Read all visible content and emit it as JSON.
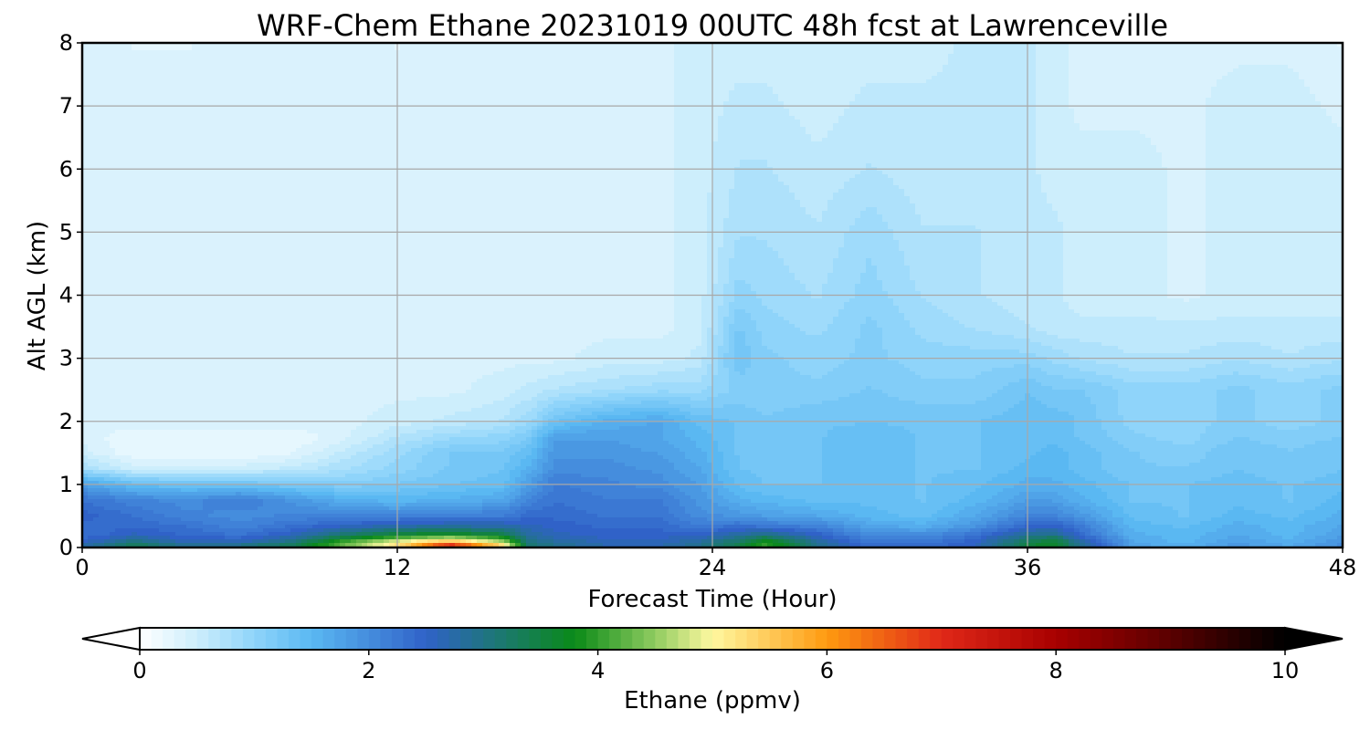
{
  "chart_data": {
    "type": "heatmap",
    "title": "WRF-Chem Ethane  20231019 00UTC 48h fcst at Lawrenceville",
    "xlabel": "Forecast Time (Hour)",
    "ylabel": "Alt AGL (km)",
    "xlim": [
      0,
      48
    ],
    "ylim": [
      0,
      8
    ],
    "x_ticks": [
      0,
      12,
      24,
      36,
      48
    ],
    "y_ticks": [
      0,
      1,
      2,
      3,
      4,
      5,
      6,
      7,
      8
    ],
    "grid": true,
    "colorbar": {
      "label": "Ethane  (ppmv)",
      "range": [
        0,
        10
      ],
      "ticks": [
        0,
        2,
        4,
        6,
        8,
        10
      ],
      "extend": "both",
      "placement": "bottom",
      "colormap": [
        {
          "value": 0.0,
          "color": "#ffffff"
        },
        {
          "value": 0.5,
          "color": "#cdeefc"
        },
        {
          "value": 1.0,
          "color": "#8fd4fa"
        },
        {
          "value": 1.5,
          "color": "#5ab8f2"
        },
        {
          "value": 2.5,
          "color": "#3062c8"
        },
        {
          "value": 3.2,
          "color": "#1a7a6a"
        },
        {
          "value": 3.8,
          "color": "#0a8a18"
        },
        {
          "value": 4.5,
          "color": "#90cc60"
        },
        {
          "value": 5.0,
          "color": "#fff8a0"
        },
        {
          "value": 6.0,
          "color": "#ff9a10"
        },
        {
          "value": 7.0,
          "color": "#e02818"
        },
        {
          "value": 8.0,
          "color": "#a80000"
        },
        {
          "value": 9.0,
          "color": "#5a0000"
        },
        {
          "value": 10.0,
          "color": "#000000"
        }
      ]
    },
    "field": {
      "x": [
        0,
        2,
        4,
        6,
        8,
        10,
        12,
        14,
        16,
        17,
        18,
        20,
        22,
        23.5,
        25,
        26,
        28,
        30,
        32,
        34,
        36,
        37,
        38,
        40,
        42,
        44,
        46,
        48
      ],
      "y": [
        0,
        0.1,
        0.2,
        0.35,
        0.5,
        0.75,
        1,
        1.25,
        1.5,
        1.75,
        2,
        2.5,
        3,
        3.5,
        4,
        5,
        6,
        7,
        8
      ],
      "values": [
        [
          2.8,
          3.5,
          3.0,
          3.2,
          3.5,
          4.5,
          5.5,
          8.0,
          5.8,
          3.2,
          3.0,
          2.7,
          2.7,
          3.0,
          3.5,
          4.2,
          3.0,
          2.4,
          2.4,
          2.6,
          3.6,
          3.8,
          3.0,
          1.8,
          1.6,
          1.9,
          1.7,
          2.0
        ],
        [
          2.5,
          3.0,
          2.6,
          2.6,
          3.0,
          4.0,
          4.8,
          5.5,
          4.5,
          3.0,
          2.8,
          2.6,
          2.6,
          2.8,
          3.2,
          3.8,
          2.8,
          2.2,
          2.2,
          2.5,
          3.3,
          3.6,
          2.8,
          1.7,
          1.5,
          1.8,
          1.6,
          1.9
        ],
        [
          2.3,
          2.6,
          2.4,
          2.3,
          2.6,
          3.2,
          3.6,
          3.8,
          3.5,
          2.8,
          2.6,
          2.5,
          2.5,
          2.5,
          2.8,
          3.0,
          2.5,
          2.0,
          2.0,
          2.3,
          2.9,
          3.0,
          2.4,
          1.6,
          1.5,
          1.7,
          1.5,
          1.8
        ],
        [
          2.4,
          2.4,
          2.3,
          2.1,
          2.3,
          2.5,
          2.7,
          2.7,
          2.7,
          2.6,
          2.5,
          2.4,
          2.4,
          2.2,
          2.3,
          2.2,
          2.1,
          1.7,
          1.6,
          1.9,
          2.4,
          2.5,
          2.2,
          1.5,
          1.4,
          1.6,
          1.5,
          1.7
        ],
        [
          2.5,
          2.3,
          2.1,
          2.0,
          2.1,
          2.1,
          2.1,
          2.2,
          2.2,
          2.4,
          2.4,
          2.3,
          2.3,
          2.0,
          1.9,
          1.8,
          1.7,
          1.5,
          1.4,
          1.7,
          2.1,
          2.1,
          1.9,
          1.4,
          1.3,
          1.5,
          1.4,
          1.6
        ],
        [
          2.3,
          2.1,
          2.0,
          2.2,
          1.9,
          1.6,
          1.5,
          1.6,
          1.7,
          2.1,
          2.3,
          2.2,
          2.2,
          1.9,
          1.6,
          1.5,
          1.4,
          1.4,
          1.3,
          1.5,
          1.8,
          1.8,
          1.6,
          1.3,
          1.3,
          1.4,
          1.3,
          1.5
        ],
        [
          1.8,
          1.4,
          1.3,
          1.3,
          1.2,
          1.1,
          1.2,
          1.3,
          1.4,
          1.8,
          2.2,
          2.1,
          2.0,
          1.8,
          1.4,
          1.3,
          1.3,
          1.4,
          1.3,
          1.4,
          1.6,
          1.6,
          1.5,
          1.3,
          1.3,
          1.4,
          1.3,
          1.4
        ],
        [
          0.8,
          0.5,
          0.5,
          0.5,
          0.6,
          0.8,
          1.0,
          1.2,
          1.3,
          1.6,
          2.0,
          2.0,
          1.9,
          1.7,
          1.3,
          1.3,
          1.3,
          1.4,
          1.3,
          1.3,
          1.5,
          1.5,
          1.4,
          1.2,
          1.2,
          1.3,
          1.2,
          1.3
        ],
        [
          0.5,
          0.2,
          0.2,
          0.2,
          0.3,
          0.6,
          0.9,
          1.2,
          1.2,
          1.4,
          1.9,
          1.9,
          1.8,
          1.6,
          1.3,
          1.3,
          1.3,
          1.4,
          1.3,
          1.3,
          1.4,
          1.5,
          1.4,
          1.2,
          1.1,
          1.3,
          1.2,
          1.3
        ],
        [
          0.4,
          0.2,
          0.2,
          0.2,
          0.2,
          0.4,
          0.7,
          0.9,
          1.0,
          1.2,
          1.8,
          1.8,
          1.7,
          1.5,
          1.3,
          1.3,
          1.3,
          1.4,
          1.3,
          1.3,
          1.4,
          1.4,
          1.3,
          1.1,
          1.0,
          1.2,
          1.1,
          1.2
        ],
        [
          0.4,
          0.4,
          0.4,
          0.4,
          0.4,
          0.4,
          0.5,
          0.6,
          0.7,
          0.9,
          1.3,
          1.6,
          1.7,
          1.4,
          1.3,
          1.2,
          1.3,
          1.3,
          1.3,
          1.3,
          1.4,
          1.4,
          1.3,
          1.0,
          1.0,
          1.1,
          1.0,
          1.1
        ],
        [
          0.4,
          0.4,
          0.4,
          0.4,
          0.4,
          0.4,
          0.4,
          0.4,
          0.5,
          0.6,
          0.7,
          0.8,
          0.9,
          0.9,
          1.1,
          1.1,
          1.1,
          1.2,
          1.1,
          1.1,
          1.3,
          1.2,
          1.2,
          1.0,
          1.0,
          1.1,
          1.0,
          1.1
        ],
        [
          0.4,
          0.4,
          0.4,
          0.4,
          0.4,
          0.4,
          0.4,
          0.4,
          0.4,
          0.4,
          0.4,
          0.5,
          0.5,
          0.6,
          1.3,
          1.1,
          1.0,
          1.1,
          1.0,
          1.0,
          1.0,
          0.9,
          0.8,
          0.7,
          0.7,
          0.8,
          0.7,
          0.8
        ],
        [
          0.4,
          0.4,
          0.4,
          0.4,
          0.4,
          0.4,
          0.4,
          0.4,
          0.4,
          0.4,
          0.4,
          0.4,
          0.4,
          0.5,
          1.2,
          1.0,
          0.9,
          1.1,
          0.9,
          0.8,
          0.7,
          0.6,
          0.6,
          0.6,
          0.6,
          0.6,
          0.6,
          0.6
        ],
        [
          0.4,
          0.4,
          0.4,
          0.4,
          0.4,
          0.4,
          0.4,
          0.4,
          0.4,
          0.4,
          0.4,
          0.4,
          0.4,
          0.5,
          1.0,
          0.9,
          0.8,
          1.0,
          0.8,
          0.7,
          0.6,
          0.6,
          0.5,
          0.5,
          0.4,
          0.5,
          0.5,
          0.5
        ],
        [
          0.4,
          0.4,
          0.4,
          0.4,
          0.4,
          0.4,
          0.4,
          0.4,
          0.4,
          0.4,
          0.4,
          0.4,
          0.4,
          0.5,
          0.8,
          0.8,
          0.7,
          0.9,
          0.7,
          0.7,
          0.6,
          0.6,
          0.5,
          0.5,
          0.4,
          0.5,
          0.5,
          0.5
        ],
        [
          0.4,
          0.4,
          0.4,
          0.4,
          0.4,
          0.4,
          0.4,
          0.4,
          0.4,
          0.4,
          0.4,
          0.4,
          0.4,
          0.5,
          0.7,
          0.7,
          0.6,
          0.7,
          0.6,
          0.6,
          0.6,
          0.5,
          0.5,
          0.5,
          0.4,
          0.5,
          0.5,
          0.5
        ],
        [
          0.4,
          0.4,
          0.4,
          0.4,
          0.4,
          0.4,
          0.4,
          0.4,
          0.4,
          0.4,
          0.4,
          0.4,
          0.4,
          0.5,
          0.6,
          0.6,
          0.5,
          0.6,
          0.6,
          0.6,
          0.6,
          0.5,
          0.4,
          0.4,
          0.4,
          0.5,
          0.5,
          0.4
        ],
        [
          0.4,
          0.3,
          0.3,
          0.4,
          0.4,
          0.4,
          0.3,
          0.4,
          0.4,
          0.4,
          0.4,
          0.4,
          0.4,
          0.5,
          0.5,
          0.5,
          0.5,
          0.5,
          0.5,
          0.6,
          0.6,
          0.5,
          0.4,
          0.4,
          0.4,
          0.4,
          0.4,
          0.3
        ]
      ]
    }
  }
}
